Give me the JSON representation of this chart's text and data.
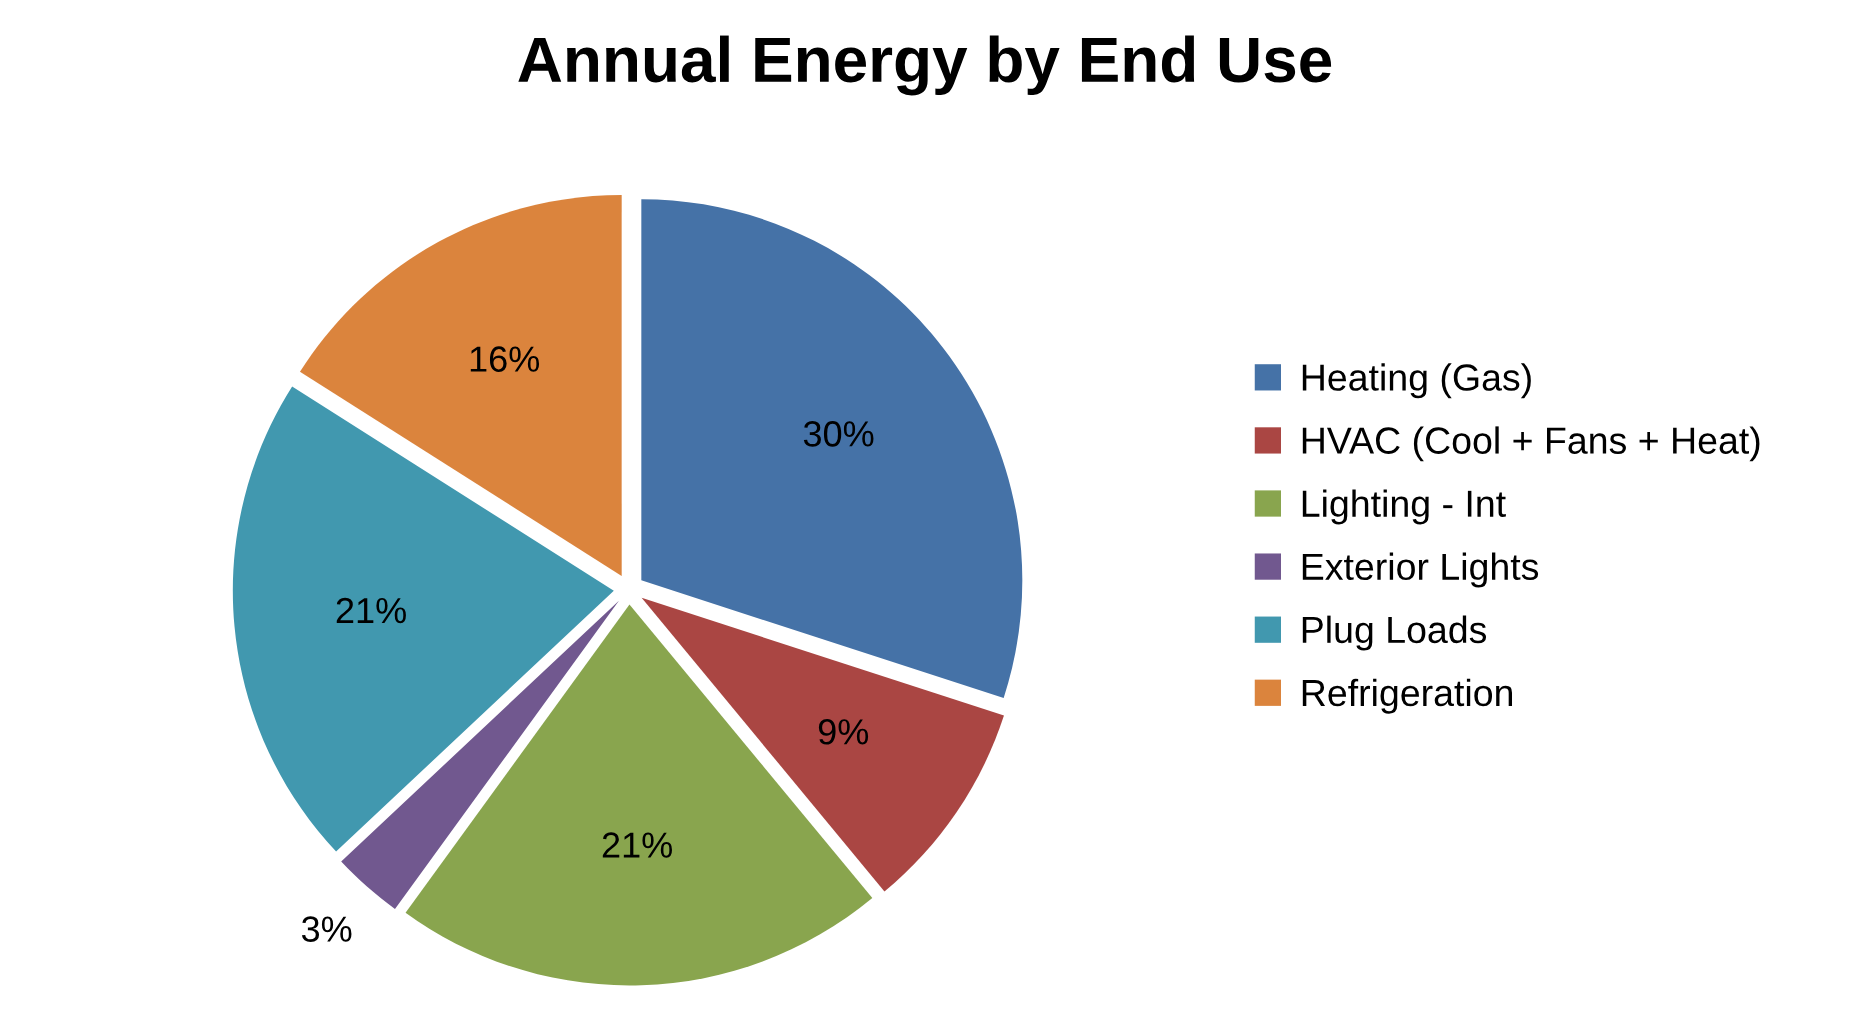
{
  "chart_data": {
    "type": "pie",
    "title": "Annual Energy by End Use",
    "categories": [
      "Heating (Gas)",
      "HVAC (Cool + Fans + Heat)",
      "Lighting - Int",
      "Exterior Lights",
      "Plug Loads",
      "Refrigeration"
    ],
    "values": [
      30,
      9,
      21,
      3,
      21,
      16
    ],
    "colors": [
      "#4572a7",
      "#aa4643",
      "#89a54e",
      "#71588f",
      "#4198af",
      "#db843d"
    ],
    "value_labels": [
      "30%",
      "9%",
      "21%",
      "3%",
      "21%",
      "16%"
    ],
    "legend": "right"
  }
}
